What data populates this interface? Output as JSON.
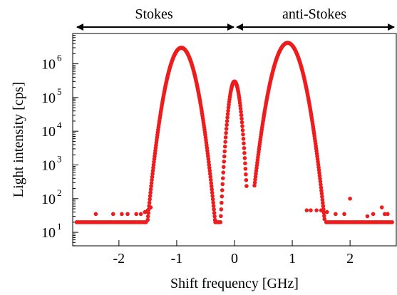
{
  "chart_data": {
    "type": "scatter",
    "title": "",
    "xlabel": "Shift frequency [GHz]",
    "ylabel": "Light intensity [cps]",
    "xlim": [
      -2.8,
      2.8
    ],
    "ylim_log10": [
      0.6,
      6.9
    ],
    "y_scale": "log",
    "grid": false,
    "legend": "none",
    "marker_color": "#ee1c1c",
    "x_ticks": [
      -2,
      -1,
      0,
      1,
      2
    ],
    "x_tick_labels": [
      "-2",
      "-1",
      "0",
      "1",
      "2"
    ],
    "y_ticks_exponent": [
      1,
      2,
      3,
      4,
      5,
      6
    ],
    "y_tick_base": "10",
    "y_tick_exp_labels": [
      "1",
      "2",
      "3",
      "4",
      "5",
      "6"
    ],
    "region_labels": [
      {
        "text": "Stokes",
        "from": -2.8,
        "to": 0
      },
      {
        "text": "anti-Stokes",
        "from": 0,
        "to": 2.8
      }
    ],
    "series": [
      {
        "peaks": [
          {
            "center": -0.92,
            "peak": 3000000,
            "sigma": 0.12
          },
          {
            "center": 0.0,
            "peak": 300000,
            "sigma": 0.055
          },
          {
            "center": 0.92,
            "peak": 4200000,
            "sigma": 0.13
          }
        ],
        "background": 20,
        "scatter_points": [
          {
            "x": -2.4,
            "y": 35
          },
          {
            "x": -2.1,
            "y": 35
          },
          {
            "x": -1.95,
            "y": 35
          },
          {
            "x": -1.85,
            "y": 35
          },
          {
            "x": -1.7,
            "y": 35
          },
          {
            "x": -1.62,
            "y": 35
          },
          {
            "x": -1.55,
            "y": 40
          },
          {
            "x": -1.5,
            "y": 45
          },
          {
            "x": -1.45,
            "y": 55
          },
          {
            "x": 1.25,
            "y": 45
          },
          {
            "x": 1.32,
            "y": 45
          },
          {
            "x": 1.42,
            "y": 45
          },
          {
            "x": 1.5,
            "y": 45
          },
          {
            "x": 1.6,
            "y": 40
          },
          {
            "x": 1.75,
            "y": 35
          },
          {
            "x": 1.9,
            "y": 35
          },
          {
            "x": 2.0,
            "y": 100
          },
          {
            "x": 2.3,
            "y": 30
          },
          {
            "x": 2.4,
            "y": 35
          },
          {
            "x": 2.55,
            "y": 55
          },
          {
            "x": 2.6,
            "y": 35
          },
          {
            "x": 2.65,
            "y": 35
          }
        ],
        "gap_ranges": [
          [
            -0.7,
            -0.4
          ],
          [
            0.2,
            0.45
          ]
        ]
      }
    ]
  }
}
